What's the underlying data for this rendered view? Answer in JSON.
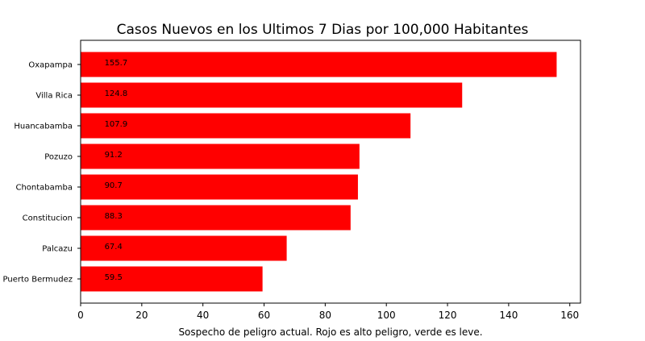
{
  "chart_data": {
    "type": "bar",
    "orientation": "horizontal",
    "title": "Casos Nuevos en los Ultimos 7 Dias por 100,000 Habitantes",
    "xlabel": "Sospecho de peligro actual. Rojo es alto peligro, verde es leve.",
    "ylabel": "",
    "categories": [
      "Oxapampa",
      "Villa Rica",
      "Huancabamba",
      "Pozuzo",
      "Chontabamba",
      "Constitucion",
      "Palcazu",
      "Puerto Bermudez"
    ],
    "values": [
      155.7,
      124.8,
      107.9,
      91.2,
      90.7,
      88.3,
      67.4,
      59.5
    ],
    "data_labels": [
      "155.7",
      "124.8",
      "107.9",
      "91.2",
      "90.7",
      "88.3",
      "67.4",
      "59.5"
    ],
    "xlim": [
      0,
      163.5
    ],
    "xticks": [
      0,
      20,
      40,
      60,
      80,
      100,
      120,
      140,
      160
    ],
    "bar_color": "#ff0000",
    "grid": false,
    "legend": "none"
  }
}
